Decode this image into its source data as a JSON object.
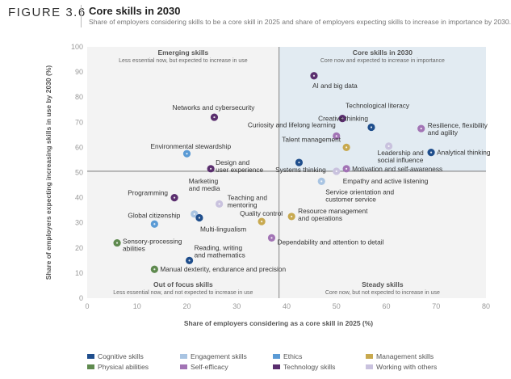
{
  "figure": {
    "label": "FIGURE 3.6",
    "title": "Core skills in 2030",
    "subtitle": "Share of employers considering skills to be a core skill in 2025 and share of employers expecting skills to increase in importance by 2030."
  },
  "chart_data": {
    "type": "scatter",
    "xlabel": "Share of employers considering as a core skill in 2025 (%)",
    "ylabel": "Share of employers expecting increasing skills in use by 2030 (%)",
    "xlim": [
      0,
      80
    ],
    "ylim": [
      0,
      100
    ],
    "xticks": [
      0,
      10,
      20,
      30,
      40,
      50,
      60,
      70,
      80
    ],
    "yticks": [
      0,
      10,
      20,
      30,
      40,
      50,
      60,
      70,
      80,
      90,
      100
    ],
    "grid": false,
    "divider": {
      "x": 38.5,
      "y": 50.5
    },
    "quadrants": [
      {
        "id": "emerging",
        "title": "Emerging skills",
        "subtitle": "Less essential now, but expected to increase in use"
      },
      {
        "id": "core",
        "title": "Core skills in 2030",
        "subtitle": "Core now and expected to increase in importance"
      },
      {
        "id": "out-of-focus",
        "title": "Out of focus skills",
        "subtitle": "Less essential now, and not expected to increase in use"
      },
      {
        "id": "steady",
        "title": "Steady skills",
        "subtitle": "Core now, but not expected to increase in use"
      }
    ],
    "categories": [
      {
        "key": "cognitive",
        "name": "Cognitive skills",
        "color": "#1f4e8c"
      },
      {
        "key": "engagement",
        "name": "Engagement skills",
        "color": "#a9c4e2"
      },
      {
        "key": "ethics",
        "name": "Ethics",
        "color": "#5b9bd5"
      },
      {
        "key": "management",
        "name": "Management skills",
        "color": "#c8a94f"
      },
      {
        "key": "physical",
        "name": "Physical abilities",
        "color": "#5f8a4f"
      },
      {
        "key": "self",
        "name": "Self-efficacy",
        "color": "#a274b5"
      },
      {
        "key": "technology",
        "name": "Technology skills",
        "color": "#5a2e6e"
      },
      {
        "key": "working",
        "name": "Working with others",
        "color": "#c9c2de"
      }
    ],
    "points": [
      {
        "label": "AI and big data",
        "x": 45.5,
        "y": 88.5,
        "category": "technology"
      },
      {
        "label": "Technological literacy",
        "x": 51.2,
        "y": 71.5,
        "category": "technology"
      },
      {
        "label": "Networks and cybersecurity",
        "x": 25.5,
        "y": 72.0,
        "category": "technology"
      },
      {
        "label": "Creative thinking",
        "x": 57.0,
        "y": 68.0,
        "category": "cognitive"
      },
      {
        "label": "Resilience, flexibility and agility",
        "x": 67.0,
        "y": 67.5,
        "category": "self"
      },
      {
        "label": "Curiosity and lifelong learning",
        "x": 50.0,
        "y": 64.5,
        "category": "self"
      },
      {
        "label": "Talent management",
        "x": 52.0,
        "y": 60.0,
        "category": "management"
      },
      {
        "label": "Leadership and social influence",
        "x": 60.5,
        "y": 60.5,
        "category": "working"
      },
      {
        "label": "Analytical thinking",
        "x": 69.0,
        "y": 58.0,
        "category": "cognitive"
      },
      {
        "label": "Environmental stewardship",
        "x": 20.0,
        "y": 57.5,
        "category": "ethics"
      },
      {
        "label": "Systems thinking",
        "x": 42.5,
        "y": 54.0,
        "category": "cognitive"
      },
      {
        "label": "Design and user experience",
        "x": 24.8,
        "y": 51.5,
        "category": "technology"
      },
      {
        "label": "Motivation and self-awareness",
        "x": 52.0,
        "y": 51.5,
        "category": "self"
      },
      {
        "label": "Empathy and active listening",
        "x": 50.0,
        "y": 50.5,
        "category": "working"
      },
      {
        "label": "Service orientation and customer service",
        "x": 47.0,
        "y": 46.5,
        "category": "engagement"
      },
      {
        "label": "Programming",
        "x": 17.5,
        "y": 40.0,
        "category": "technology"
      },
      {
        "label": "Teaching and mentoring",
        "x": 26.5,
        "y": 37.5,
        "category": "working"
      },
      {
        "label": "Marketing and media",
        "x": 21.5,
        "y": 33.5,
        "category": "engagement"
      },
      {
        "label": "Multi-lingualism",
        "x": 22.5,
        "y": 32.0,
        "category": "cognitive"
      },
      {
        "label": "Global citizenship",
        "x": 13.5,
        "y": 29.5,
        "category": "ethics"
      },
      {
        "label": "Quality control",
        "x": 35.0,
        "y": 30.5,
        "category": "management"
      },
      {
        "label": "Resource management and operations",
        "x": 41.0,
        "y": 32.5,
        "category": "management"
      },
      {
        "label": "Sensory-processing abilities",
        "x": 6.0,
        "y": 22.0,
        "category": "physical"
      },
      {
        "label": "Dependability and attention to detail",
        "x": 37.0,
        "y": 24.0,
        "category": "self"
      },
      {
        "label": "Reading, writing and mathematics",
        "x": 20.5,
        "y": 15.0,
        "category": "cognitive"
      },
      {
        "label": "Manual dexterity, endurance and precision",
        "x": 13.5,
        "y": 11.5,
        "category": "physical"
      }
    ]
  }
}
